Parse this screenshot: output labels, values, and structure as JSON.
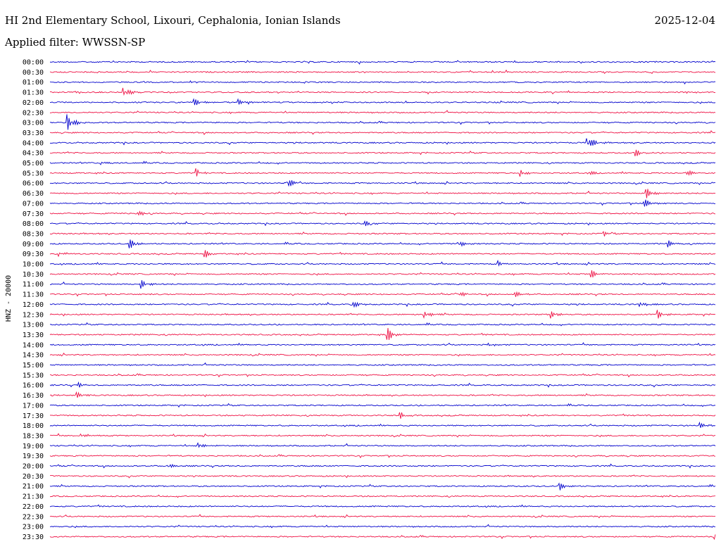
{
  "header": {
    "station": "HI 2nd Elementary School, Lixouri, Cephalonia, Ionian Islands",
    "date": "2025-12-04",
    "filter_label": "Applied filter: WWSSN-SP"
  },
  "chart_data": {
    "type": "line",
    "title": "HI 2nd Elementary School, Lixouri, Cephalonia, Ionian Islands",
    "ylabel": "HNZ - 20000",
    "colors": {
      "even_row": "#0000cc",
      "odd_row": "#ee1144"
    },
    "rows": [
      {
        "label": "00:00",
        "events": []
      },
      {
        "label": "00:30",
        "events": []
      },
      {
        "label": "01:00",
        "events": []
      },
      {
        "label": "01:30",
        "events": [
          {
            "minute": 3.3,
            "amp": 9
          }
        ]
      },
      {
        "label": "02:00",
        "events": [
          {
            "minute": 6.5,
            "amp": 5
          },
          {
            "minute": 8.5,
            "amp": 4
          }
        ]
      },
      {
        "label": "02:30",
        "events": []
      },
      {
        "label": "03:00",
        "events": [
          {
            "minute": 0.8,
            "amp": 12
          }
        ]
      },
      {
        "label": "03:30",
        "events": []
      },
      {
        "label": "04:00",
        "events": [
          {
            "minute": 24.2,
            "amp": 12
          }
        ]
      },
      {
        "label": "04:30",
        "events": [
          {
            "minute": 26.4,
            "amp": 5
          }
        ]
      },
      {
        "label": "05:00",
        "events": [
          {
            "minute": 2.3,
            "amp": 3
          }
        ]
      },
      {
        "label": "05:30",
        "events": [
          {
            "minute": 6.6,
            "amp": 6
          },
          {
            "minute": 21.2,
            "amp": 6
          },
          {
            "minute": 24.2,
            "amp": 4
          },
          {
            "minute": 28.7,
            "amp": 4
          }
        ]
      },
      {
        "label": "06:00",
        "events": [
          {
            "minute": 10.7,
            "amp": 8
          }
        ]
      },
      {
        "label": "06:30",
        "events": [
          {
            "minute": 26.9,
            "amp": 7
          }
        ]
      },
      {
        "label": "07:00",
        "events": [
          {
            "minute": 26.8,
            "amp": 6
          }
        ]
      },
      {
        "label": "07:30",
        "events": [
          {
            "minute": 3.9,
            "amp": 5
          }
        ]
      },
      {
        "label": "08:00",
        "events": [
          {
            "minute": 14.2,
            "amp": 4
          }
        ]
      },
      {
        "label": "08:30",
        "events": [
          {
            "minute": 25.0,
            "amp": 3
          }
        ]
      },
      {
        "label": "09:00",
        "events": [
          {
            "minute": 3.6,
            "amp": 7
          },
          {
            "minute": 18.4,
            "amp": 6
          },
          {
            "minute": 27.9,
            "amp": 5
          }
        ]
      },
      {
        "label": "09:30",
        "events": [
          {
            "minute": 0.4,
            "amp": 4
          },
          {
            "minute": 7.0,
            "amp": 6
          }
        ]
      },
      {
        "label": "10:00",
        "events": [
          {
            "minute": 20.2,
            "amp": 4
          }
        ]
      },
      {
        "label": "10:30",
        "events": [
          {
            "minute": 24.4,
            "amp": 6
          }
        ]
      },
      {
        "label": "11:00",
        "events": [
          {
            "minute": 4.1,
            "amp": 6
          }
        ]
      },
      {
        "label": "11:30",
        "events": [
          {
            "minute": 18.5,
            "amp": 4
          },
          {
            "minute": 21.0,
            "amp": 4
          }
        ]
      },
      {
        "label": "12:00",
        "events": [
          {
            "minute": 13.6,
            "amp": 6
          },
          {
            "minute": 26.6,
            "amp": 4
          }
        ]
      },
      {
        "label": "12:30",
        "events": [
          {
            "minute": 16.9,
            "amp": 6
          },
          {
            "minute": 22.6,
            "amp": 5
          },
          {
            "minute": 27.4,
            "amp": 6
          }
        ]
      },
      {
        "label": "13:00",
        "events": []
      },
      {
        "label": "13:30",
        "events": [
          {
            "minute": 15.2,
            "amp": 11
          }
        ]
      },
      {
        "label": "14:00",
        "events": [
          {
            "minute": 19.8,
            "amp": 3
          }
        ]
      },
      {
        "label": "14:30",
        "events": []
      },
      {
        "label": "15:00",
        "events": []
      },
      {
        "label": "15:30",
        "events": []
      },
      {
        "label": "16:00",
        "events": [
          {
            "minute": 1.3,
            "amp": 4
          }
        ]
      },
      {
        "label": "16:30",
        "events": [
          {
            "minute": 1.2,
            "amp": 4
          }
        ]
      },
      {
        "label": "17:00",
        "events": []
      },
      {
        "label": "17:30",
        "events": [
          {
            "minute": 15.8,
            "amp": 5
          }
        ]
      },
      {
        "label": "18:00",
        "events": [
          {
            "minute": 29.3,
            "amp": 4
          }
        ]
      },
      {
        "label": "18:30",
        "events": [
          {
            "minute": 1.4,
            "amp": 5
          }
        ]
      },
      {
        "label": "19:00",
        "events": [
          {
            "minute": 6.7,
            "amp": 4
          }
        ]
      },
      {
        "label": "19:30",
        "events": []
      },
      {
        "label": "20:00",
        "events": [
          {
            "minute": 5.3,
            "amp": 4
          }
        ]
      },
      {
        "label": "20:30",
        "events": []
      },
      {
        "label": "21:00",
        "events": [
          {
            "minute": 23.0,
            "amp": 5
          }
        ]
      },
      {
        "label": "21:30",
        "events": []
      },
      {
        "label": "22:00",
        "events": []
      },
      {
        "label": "22:30",
        "events": []
      },
      {
        "label": "23:00",
        "events": []
      },
      {
        "label": "23:30",
        "events": [
          {
            "minute": 30.0,
            "amp": 5
          }
        ]
      }
    ],
    "minutes_per_row": 30,
    "legend": "none",
    "grid": false
  }
}
